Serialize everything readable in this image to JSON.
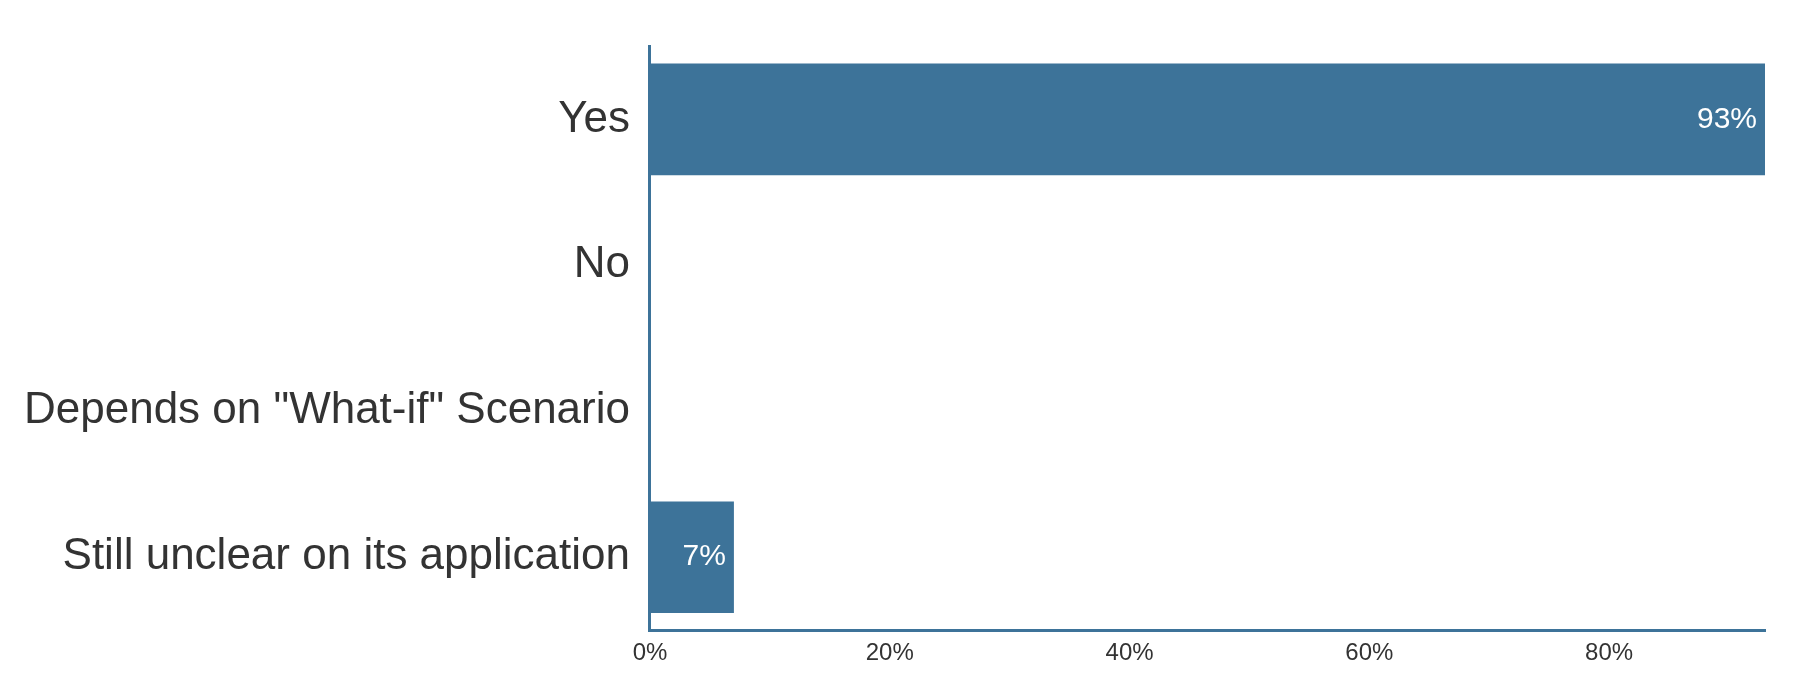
{
  "chart_data": {
    "type": "bar",
    "orientation": "horizontal",
    "categories": [
      "Yes",
      "No",
      "Depends on \"What-if\" Scenario",
      "Still unclear on its application"
    ],
    "values": [
      93,
      0,
      0,
      7
    ],
    "color": "#3d7399",
    "value_labels": [
      "93%",
      null,
      null,
      "7%"
    ],
    "xlim": [
      0,
      93
    ],
    "xticks": [
      {
        "value": 0,
        "label": "0%"
      },
      {
        "value": 20,
        "label": "20%"
      },
      {
        "value": 40,
        "label": "40%"
      },
      {
        "value": 60,
        "label": "60%"
      },
      {
        "value": 80,
        "label": "80%"
      }
    ]
  }
}
